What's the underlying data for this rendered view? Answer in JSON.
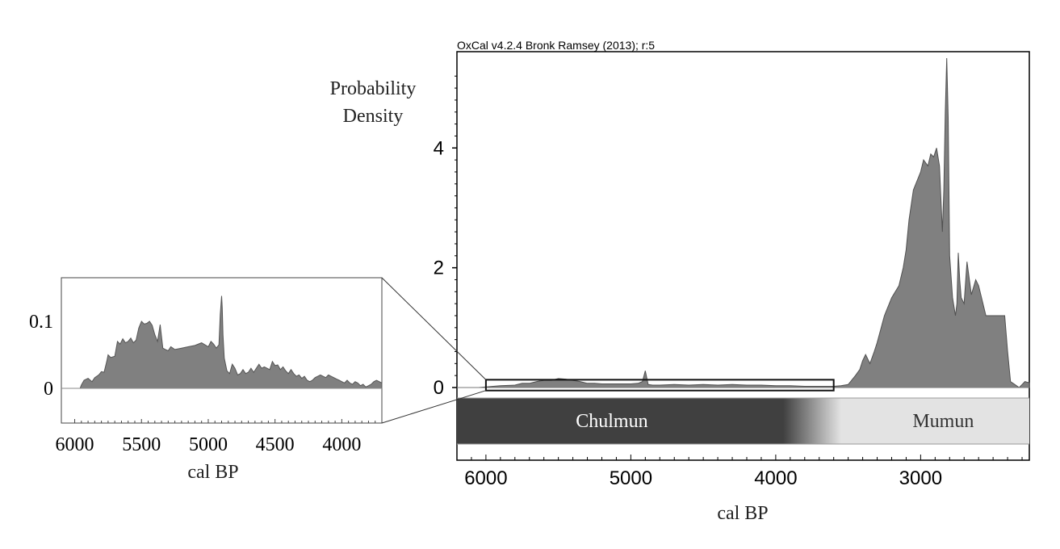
{
  "chart_data": [
    {
      "type": "area",
      "title": "OxCal v4.2.4 Bronk Ramsey (2013); r:5",
      "xlabel": "cal BP",
      "ylabel": "Probability Density",
      "x_reversed": true,
      "xlim": [
        6200,
        2250
      ],
      "ylim": [
        0,
        5.5
      ],
      "xticks": [
        6000,
        5000,
        4000,
        3000
      ],
      "xtick_labels": [
        "6000",
        "5000",
        "4000",
        "3000"
      ],
      "yticks": [
        0,
        2,
        4
      ],
      "ytick_labels": [
        "0",
        "2",
        "4"
      ],
      "grid": false,
      "color": "#808080",
      "series": [
        {
          "x": [
            6200,
            6050,
            6000,
            5950,
            5900,
            5800,
            5750,
            5700,
            5650,
            5600,
            5550,
            5500,
            5450,
            5400,
            5350,
            5300,
            5250,
            5200,
            5100,
            5000,
            4950,
            4920,
            4900,
            4880,
            4850,
            4800,
            4700,
            4600,
            4500,
            4400,
            4300,
            4200,
            4100,
            4000,
            3900,
            3800,
            3700,
            3600,
            3550,
            3500,
            3450,
            3420,
            3400,
            3380,
            3350,
            3320,
            3300,
            3250,
            3200,
            3150,
            3120,
            3100,
            3080,
            3050,
            3000,
            2980,
            2950,
            2930,
            2910,
            2890,
            2870,
            2850,
            2840,
            2830,
            2820,
            2810,
            2800,
            2780,
            2760,
            2750,
            2740,
            2730,
            2720,
            2700,
            2680,
            2650,
            2620,
            2600,
            2580,
            2550,
            2500,
            2450,
            2420,
            2400,
            2380,
            2350,
            2320,
            2300,
            2280,
            2250
          ],
          "y": [
            0,
            0,
            0.01,
            0.02,
            0.03,
            0.04,
            0.07,
            0.07,
            0.1,
            0.12,
            0.12,
            0.15,
            0.14,
            0.12,
            0.1,
            0.07,
            0.07,
            0.06,
            0.06,
            0.06,
            0.07,
            0.1,
            0.28,
            0.05,
            0.04,
            0.04,
            0.05,
            0.04,
            0.05,
            0.04,
            0.05,
            0.04,
            0.04,
            0.03,
            0.03,
            0.02,
            0.02,
            0.02,
            0.03,
            0.05,
            0.2,
            0.3,
            0.45,
            0.55,
            0.4,
            0.6,
            0.75,
            1.2,
            1.5,
            1.7,
            2.0,
            2.3,
            2.8,
            3.3,
            3.6,
            3.8,
            3.7,
            3.9,
            3.85,
            4.0,
            3.7,
            2.6,
            3.3,
            4.6,
            5.5,
            4.5,
            2.2,
            1.5,
            1.2,
            1.4,
            2.25,
            1.8,
            1.5,
            1.4,
            2.1,
            1.55,
            1.8,
            1.7,
            1.5,
            1.2,
            1.2,
            1.2,
            1.2,
            0.6,
            0.1,
            0.05,
            0,
            0.05,
            0.1,
            0.08
          ]
        }
      ],
      "annotations": [
        {
          "label": "Chulmun",
          "x_range": [
            6200,
            3950
          ],
          "color": "#404040",
          "text_color": "#ffffff"
        },
        {
          "label": "Mumun",
          "x_range": [
            3550,
            2250
          ],
          "color": "#e3e3e3",
          "text_color": "#333333"
        }
      ],
      "zoom_box": {
        "x_range": [
          6000,
          3600
        ],
        "y_range": [
          -0.05,
          0.13
        ]
      }
    },
    {
      "type": "area",
      "title": "",
      "xlabel": "cal BP",
      "ylabel": "",
      "x_reversed": true,
      "xlim": [
        6100,
        3700
      ],
      "ylim": [
        -0.045,
        0.17
      ],
      "xticks": [
        6000,
        5500,
        5000,
        4500,
        4000
      ],
      "xtick_labels": [
        "6000",
        "5500",
        "5000",
        "4500",
        "4000"
      ],
      "yticks": [
        0,
        0.1
      ],
      "ytick_labels": [
        "0",
        "0.1"
      ],
      "grid": false,
      "color": "#808080",
      "series": [
        {
          "x": [
            6100,
            5960,
            5950,
            5930,
            5900,
            5870,
            5850,
            5820,
            5800,
            5780,
            5760,
            5750,
            5730,
            5700,
            5680,
            5660,
            5640,
            5620,
            5600,
            5580,
            5560,
            5540,
            5520,
            5500,
            5480,
            5460,
            5440,
            5420,
            5400,
            5380,
            5360,
            5340,
            5320,
            5300,
            5280,
            5250,
            5200,
            5150,
            5100,
            5050,
            5000,
            4980,
            4960,
            4940,
            4920,
            4910,
            4900,
            4895,
            4890,
            4880,
            4860,
            4840,
            4820,
            4800,
            4780,
            4760,
            4740,
            4720,
            4700,
            4680,
            4660,
            4640,
            4620,
            4600,
            4580,
            4560,
            4540,
            4520,
            4500,
            4480,
            4460,
            4440,
            4420,
            4400,
            4380,
            4360,
            4340,
            4320,
            4300,
            4280,
            4260,
            4240,
            4220,
            4200,
            4180,
            4160,
            4140,
            4120,
            4100,
            4080,
            4060,
            4040,
            4020,
            4000,
            3980,
            3960,
            3940,
            3920,
            3900,
            3880,
            3860,
            3840,
            3820,
            3800,
            3780,
            3760,
            3740,
            3720,
            3700
          ],
          "y": [
            0,
            0,
            0.005,
            0.012,
            0.015,
            0.01,
            0.016,
            0.02,
            0.025,
            0.024,
            0.04,
            0.05,
            0.046,
            0.048,
            0.07,
            0.066,
            0.074,
            0.068,
            0.07,
            0.075,
            0.068,
            0.072,
            0.09,
            0.1,
            0.096,
            0.097,
            0.1,
            0.094,
            0.08,
            0.07,
            0.095,
            0.06,
            0.058,
            0.056,
            0.062,
            0.058,
            0.06,
            0.062,
            0.064,
            0.068,
            0.062,
            0.07,
            0.066,
            0.06,
            0.065,
            0.11,
            0.138,
            0.12,
            0.08,
            0.045,
            0.026,
            0.022,
            0.036,
            0.03,
            0.02,
            0.022,
            0.028,
            0.022,
            0.024,
            0.03,
            0.024,
            0.03,
            0.036,
            0.03,
            0.032,
            0.03,
            0.028,
            0.04,
            0.034,
            0.035,
            0.028,
            0.032,
            0.026,
            0.022,
            0.028,
            0.022,
            0.018,
            0.02,
            0.015,
            0.018,
            0.012,
            0.01,
            0.012,
            0.016,
            0.018,
            0.02,
            0.018,
            0.016,
            0.02,
            0.018,
            0.016,
            0.014,
            0.012,
            0.01,
            0.008,
            0.012,
            0.008,
            0.006,
            0.01,
            0.008,
            0.004,
            0.006,
            0.002,
            0.004,
            0.006,
            0.01,
            0.012,
            0.01,
            0.008
          ]
        }
      ]
    }
  ]
}
